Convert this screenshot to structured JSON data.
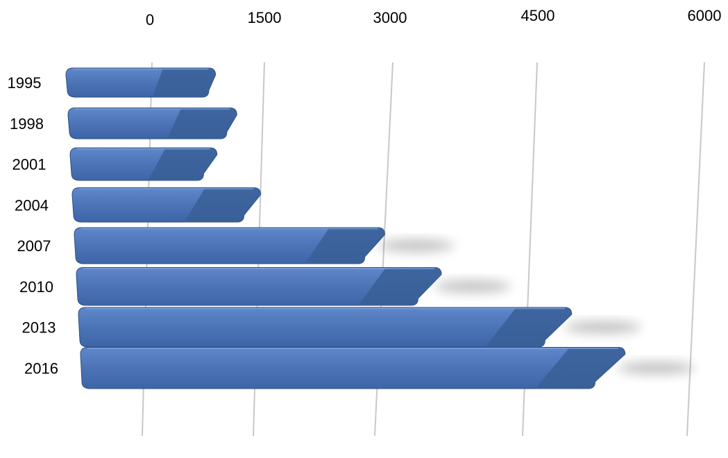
{
  "chart_data": {
    "type": "bar",
    "orientation": "horizontal",
    "style": "3d-perspective",
    "categories": [
      "1995",
      "1998",
      "2001",
      "2004",
      "2007",
      "2010",
      "2013",
      "2016"
    ],
    "values": [
      850,
      1150,
      900,
      1500,
      3000,
      3600,
      4900,
      5400
    ],
    "xlim": [
      0,
      6000
    ],
    "x_ticks": [
      "0",
      "1500",
      "3000",
      "4500",
      "6000"
    ],
    "grid": true,
    "legend": "none",
    "title": "",
    "xlabel": "",
    "ylabel": ""
  },
  "colors": {
    "bar_front": "#4a72b5",
    "bar_top": "#5a83c6",
    "bar_end": "#3a5f98",
    "bar_outline": "#2e4f80",
    "gridline": "#c8c8c8"
  }
}
